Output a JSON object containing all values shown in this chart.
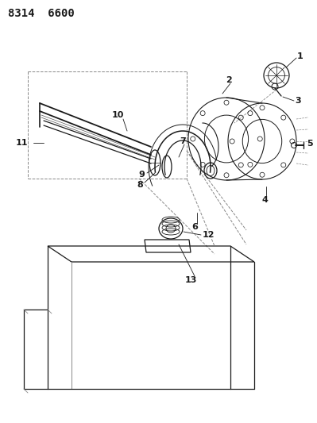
{
  "title": "8314  6600",
  "bg_color": "#ffffff",
  "line_color": "#1a1a1a",
  "dashed_color": "#888888",
  "title_fontsize": 10,
  "label_fontsize": 7.5,
  "fig_width": 3.99,
  "fig_height": 5.33,
  "dpi": 100
}
